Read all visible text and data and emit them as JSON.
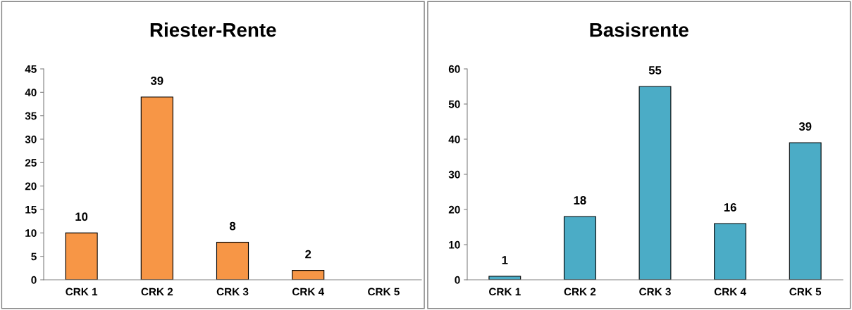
{
  "chart_data": [
    {
      "type": "bar",
      "title": "Riester-Rente",
      "categories": [
        "CRK 1",
        "CRK 2",
        "CRK 3",
        "CRK 4",
        "CRK 5"
      ],
      "values": [
        10,
        39,
        8,
        2,
        null
      ],
      "color": "#f79646",
      "ylim": [
        0,
        45
      ],
      "yticks": [
        0,
        5,
        10,
        15,
        20,
        25,
        30,
        35,
        40,
        45
      ],
      "data_labels": true,
      "grid": false,
      "legend": false
    },
    {
      "type": "bar",
      "title": "Basisrente",
      "categories": [
        "CRK 1",
        "CRK 2",
        "CRK 3",
        "CRK 4",
        "CRK 5"
      ],
      "values": [
        1,
        18,
        55,
        16,
        39
      ],
      "color": "#4bacc6",
      "ylim": [
        0,
        60
      ],
      "yticks": [
        0,
        10,
        20,
        30,
        40,
        50,
        60
      ],
      "data_labels": true,
      "grid": false,
      "legend": false
    }
  ]
}
